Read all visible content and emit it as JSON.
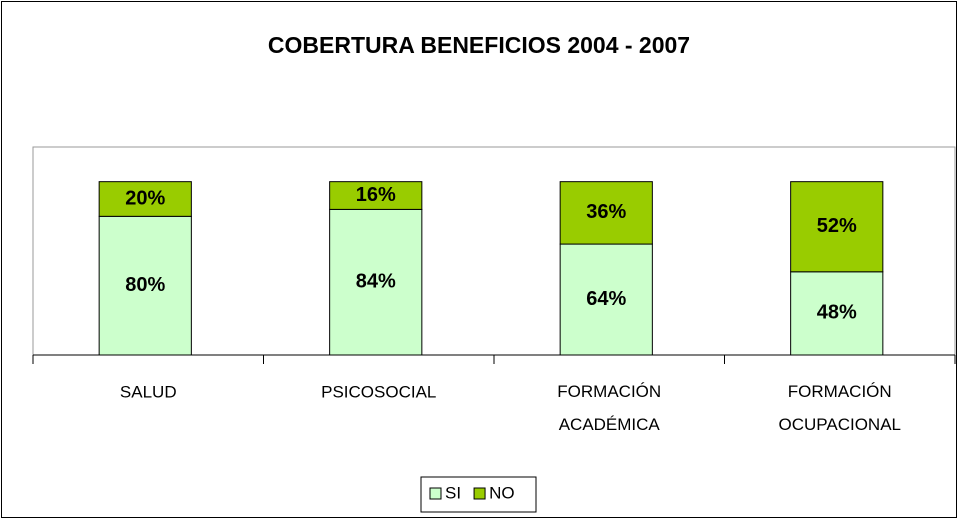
{
  "chart_data": {
    "type": "stacked_bar",
    "title": "COBERTURA BENEFICIOS 2004 - 2007",
    "categories": [
      "SALUD",
      "PSICOSOCIAL",
      "FORMACIÓN ACADÉMICA",
      "FORMACIÓN OCUPACIONAL"
    ],
    "series": [
      {
        "name": "SI",
        "color": "#ccffcc",
        "values": [
          80,
          84,
          64,
          48
        ],
        "value_labels": [
          "80%",
          "84%",
          "64%",
          "48%"
        ]
      },
      {
        "name": "NO",
        "color": "#99cc00",
        "values": [
          20,
          16,
          36,
          52
        ],
        "value_labels": [
          "20%",
          "16%",
          "36%",
          "52%"
        ]
      }
    ],
    "ylim": [
      0,
      120
    ],
    "legend": "bottom"
  }
}
